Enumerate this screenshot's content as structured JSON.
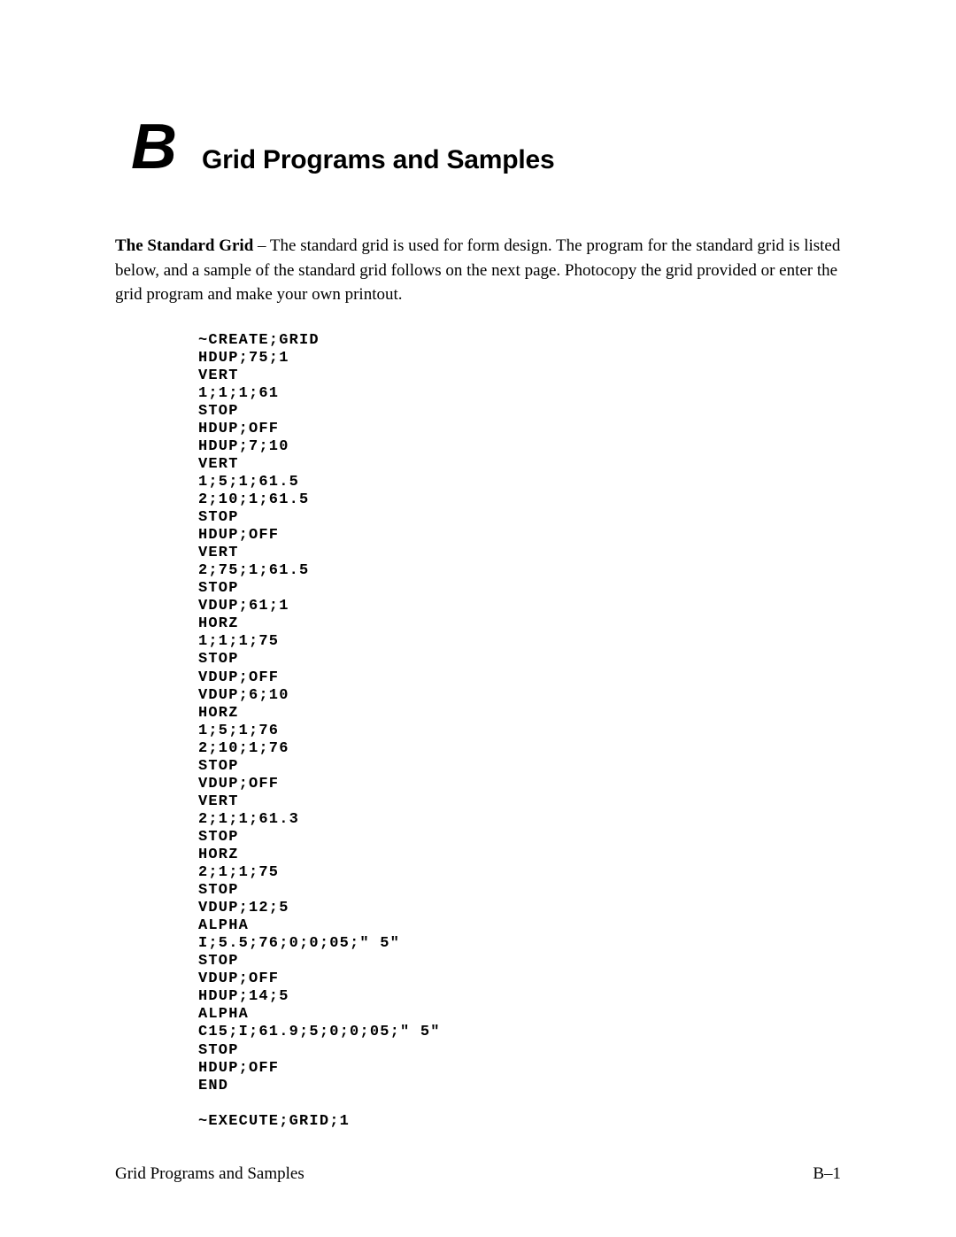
{
  "chapter": {
    "letter": "B",
    "title": "Grid Programs and Samples"
  },
  "intro": {
    "bold_lead": "The Standard Grid",
    "text": " – The standard grid is used for form design. The program for the standard grid is listed below, and a sample of the standard grid follows on the next page. Photocopy the grid provided or enter the grid program and make your own printout."
  },
  "code": {
    "lines": [
      "~CREATE;GRID",
      "HDUP;75;1",
      "VERT",
      "1;1;1;61",
      "STOP",
      "HDUP;OFF",
      "HDUP;7;10",
      "VERT",
      "1;5;1;61.5",
      "2;10;1;61.5",
      "STOP",
      "HDUP;OFF",
      "VERT",
      "2;75;1;61.5",
      "STOP",
      "VDUP;61;1",
      "HORZ",
      "1;1;1;75",
      "STOP",
      "VDUP;OFF",
      "VDUP;6;10",
      "HORZ",
      "1;5;1;76",
      "2;10;1;76",
      "STOP",
      "VDUP;OFF",
      "VERT",
      "2;1;1;61.3",
      "STOP",
      "HORZ",
      "2;1;1;75",
      "STOP",
      "VDUP;12;5",
      "ALPHA",
      "I;5.5;76;0;0;05;\" 5\"",
      "STOP",
      "VDUP;OFF",
      "HDUP;14;5",
      "ALPHA",
      "C15;I;61.9;5;0;0;05;\" 5\"",
      "STOP",
      "HDUP;OFF",
      "END",
      "",
      "~EXECUTE;GRID;1"
    ]
  },
  "footer": {
    "left": "Grid Programs and Samples",
    "right": "B–1"
  }
}
